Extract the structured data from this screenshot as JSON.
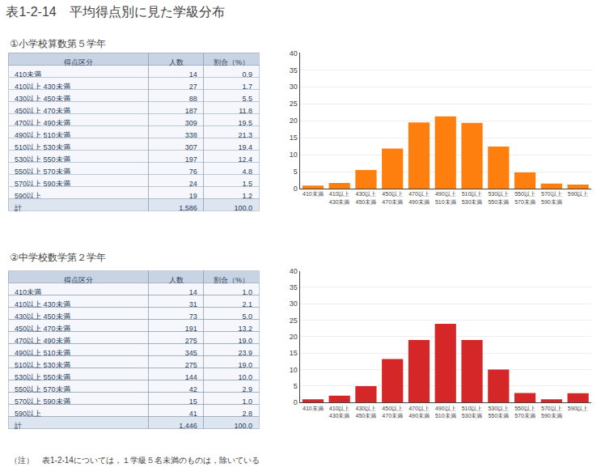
{
  "title": "表1-2-14　平均得点別に見た学級分布",
  "note": "（注）　表1-2-14については，１学級５名未満のものは，除いている",
  "chart_data": [
    {
      "type": "table",
      "title": "①小学校算数第５学年",
      "columns": [
        {
          "name": "得点区分",
          "values": [
            "410未満",
            "410以上 430未満",
            "430以上 450未満",
            "450以上 470未満",
            "470以上 490未満",
            "490以上 510未満",
            "510以上 530未満",
            "530以上 550未満",
            "550以上 570未満",
            "570以上 590未満",
            "590以上",
            "計"
          ]
        },
        {
          "name": "人数",
          "values": [
            14,
            27,
            88,
            187,
            309,
            338,
            307,
            197,
            76,
            24,
            19,
            {
              "value": 1586,
              "label": "1,586"
            }
          ]
        },
        {
          "name": "割合（%）",
          "values": [
            0.9,
            1.7,
            5.5,
            11.8,
            19.5,
            21.3,
            19.4,
            12.4,
            4.8,
            1.5,
            1.2,
            {
              "value": 100.0,
              "label": "100.0"
            }
          ]
        }
      ]
    },
    {
      "type": "bar",
      "categories": [
        "410未満",
        "410以上 430未満",
        "430以上 450未満",
        "450以上 470未満",
        "470以上 490未満",
        "490以上 510未満",
        "510以上 530未満",
        "530以上 550未満",
        "550以上 570未満",
        "570以上 590未満",
        "590以上"
      ],
      "values": [
        0.9,
        1.7,
        5.5,
        11.8,
        19.5,
        21.3,
        19.4,
        12.4,
        4.8,
        1.5,
        1.2
      ],
      "ylim": [
        0,
        40
      ],
      "yticks": [
        0,
        5,
        10,
        15,
        20,
        25,
        30,
        35,
        40
      ],
      "grid": true
    },
    {
      "type": "table",
      "title": "②中学校数学第２学年",
      "columns": [
        {
          "name": "得点区分",
          "values": [
            "410未満",
            "410以上 430未満",
            "430以上 450未満",
            "450以上 470未満",
            "470以上 490未満",
            "490以上 510未満",
            "510以上 530未満",
            "530以上 550未満",
            "550以上 570未満",
            "570以上 590未満",
            "590以上",
            "計"
          ]
        },
        {
          "name": "人数",
          "values": [
            14,
            31,
            73,
            191,
            275,
            345,
            275,
            144,
            42,
            15,
            41,
            {
              "value": 1446,
              "label": "1,446"
            }
          ]
        },
        {
          "name": "割合（%）",
          "values": [
            {
              "value": 1.0,
              "label": "1.0"
            },
            2.1,
            {
              "value": 5.0,
              "label": "5.0"
            },
            13.2,
            {
              "value": 19.0,
              "label": "19.0"
            },
            23.9,
            {
              "value": 19.0,
              "label": "19.0"
            },
            {
              "value": 10.0,
              "label": "10.0"
            },
            2.9,
            {
              "value": 1.0,
              "label": "1.0"
            },
            2.8,
            {
              "value": 100.0,
              "label": "100.0"
            }
          ]
        }
      ]
    },
    {
      "type": "bar",
      "categories": [
        "410未満",
        "410以上 430未満",
        "430以上 450未満",
        "450以上 470未満",
        "470以上 490未満",
        "490以上 510未満",
        "510以上 530未満",
        "530以上 550未満",
        "550以上 570未満",
        "570以上 590未満",
        "590以上"
      ],
      "values": [
        1.0,
        2.1,
        5.0,
        13.2,
        19.0,
        23.9,
        19.0,
        10.0,
        2.9,
        1.0,
        2.8
      ],
      "ylim": [
        0,
        40
      ],
      "yticks": [
        0,
        5,
        10,
        15,
        20,
        25,
        30,
        35,
        40
      ],
      "grid": true
    }
  ]
}
